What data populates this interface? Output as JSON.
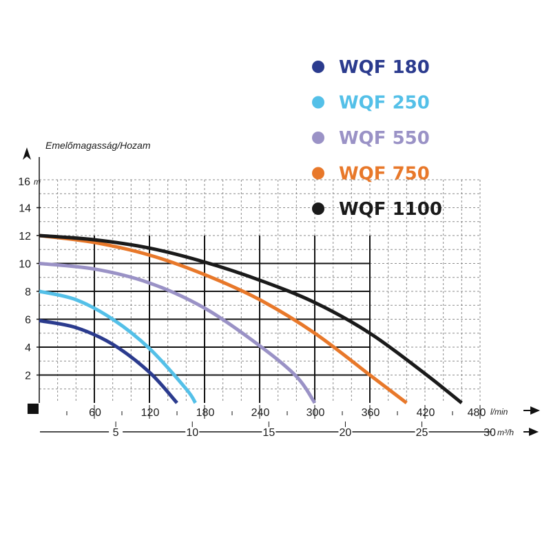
{
  "chart_data": {
    "type": "line",
    "ytitle": "Emelőmagasság/Hozam",
    "y_top_label": "16",
    "y_unit": "m",
    "yticks": [
      "2",
      "4",
      "6",
      "8",
      "10",
      "12",
      "14"
    ],
    "ylim": [
      0,
      16
    ],
    "x_lmin": {
      "ticks": [
        "60",
        "120",
        "180",
        "240",
        "300",
        "360",
        "420",
        "480"
      ],
      "unit": "l/min",
      "xlim": [
        0,
        480
      ]
    },
    "x_m3h": {
      "ticks": [
        "5",
        "10",
        "15",
        "20",
        "25",
        "30"
      ],
      "unit": "m³/h"
    },
    "grid": true,
    "legend_position": "top-right",
    "series": [
      {
        "name": "WQF 180",
        "color": "#2b3b8e",
        "x": [
          0,
          40,
          80,
          120,
          150
        ],
        "y": [
          5.9,
          5.4,
          4.2,
          2.2,
          0
        ]
      },
      {
        "name": "WQF 250",
        "color": "#54c0e8",
        "x": [
          0,
          40,
          80,
          120,
          160,
          170
        ],
        "y": [
          8.0,
          7.4,
          6.0,
          3.9,
          1.0,
          0
        ]
      },
      {
        "name": "WQF 550",
        "color": "#9a92c6",
        "x": [
          0,
          60,
          120,
          180,
          240,
          280,
          300
        ],
        "y": [
          10.0,
          9.6,
          8.6,
          6.8,
          4.1,
          1.9,
          0
        ]
      },
      {
        "name": "WQF 750",
        "color": "#e8782a",
        "x": [
          0,
          60,
          120,
          180,
          240,
          300,
          360,
          400
        ],
        "y": [
          12.0,
          11.5,
          10.6,
          9.2,
          7.4,
          5.0,
          2.0,
          0
        ]
      },
      {
        "name": "WQF 1100",
        "color": "#1a1a1a",
        "x": [
          0,
          60,
          120,
          180,
          240,
          300,
          360,
          420,
          460
        ],
        "y": [
          12.0,
          11.7,
          11.1,
          10.1,
          8.8,
          7.2,
          5.0,
          2.1,
          0
        ]
      }
    ]
  }
}
